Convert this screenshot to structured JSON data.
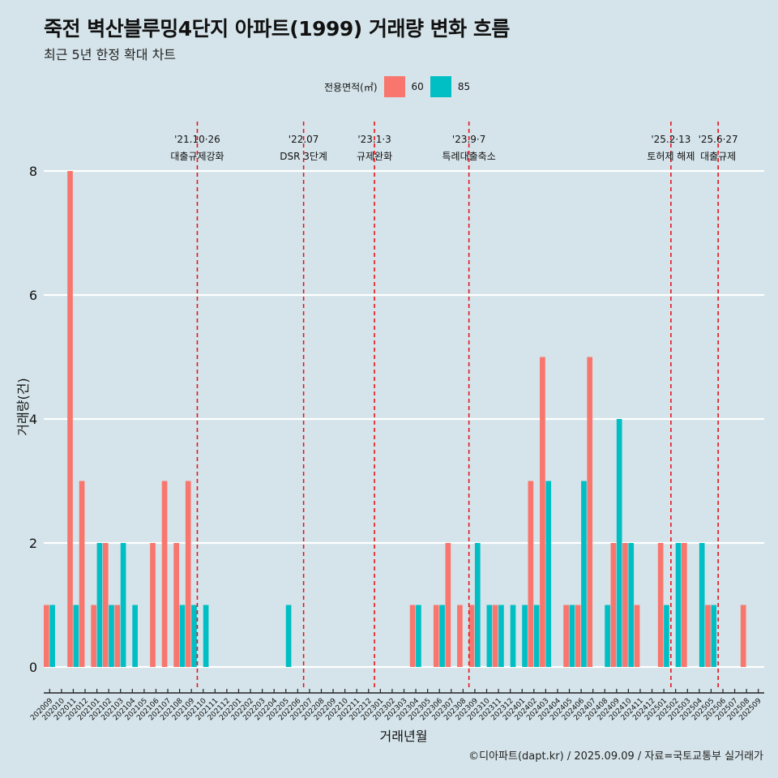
{
  "title": "죽전 벽산블루밍4단지 아파트(1999) 거래량 변화 흐름",
  "subtitle": "최근 5년 한정 확대 차트",
  "caption": "©디아파트(dapt.kr) / 2025.09.09 / 자료=국토교통부 실거래가",
  "chart_data": {
    "type": "bar",
    "xlabel": "거래년월",
    "ylabel": "거래량(건)",
    "ylim": [
      0,
      8
    ],
    "y_ticks": [
      "0",
      "2",
      "4",
      "6",
      "8"
    ],
    "grid": true,
    "legend": {
      "title": "전용면적(㎡)",
      "position": "top",
      "entries": [
        {
          "name": "60",
          "color": "#f8766d"
        },
        {
          "name": "85",
          "color": "#00bfc4"
        }
      ]
    },
    "categories": [
      "202009",
      "202010",
      "202011",
      "202012",
      "202101",
      "202102",
      "202103",
      "202104",
      "202105",
      "202106",
      "202107",
      "202108",
      "202109",
      "202110",
      "202111",
      "202112",
      "202201",
      "202202",
      "202203",
      "202204",
      "202205",
      "202206",
      "202207",
      "202208",
      "202209",
      "202210",
      "202211",
      "202212",
      "202301",
      "202302",
      "202303",
      "202304",
      "202305",
      "202306",
      "202307",
      "202308",
      "202309",
      "202310",
      "202311",
      "202312",
      "202401",
      "202402",
      "202403",
      "202404",
      "202405",
      "202406",
      "202407",
      "202408",
      "202409",
      "202410",
      "202411",
      "202412",
      "202501",
      "202502",
      "202503",
      "202504",
      "202505",
      "202506",
      "202507",
      "202508",
      "202509"
    ],
    "series": [
      {
        "name": "60",
        "color": "#f8766d",
        "values": [
          1,
          0,
          8,
          3,
          1,
          2,
          1,
          0,
          0,
          2,
          3,
          2,
          3,
          0,
          0,
          0,
          0,
          0,
          0,
          0,
          0,
          0,
          0,
          0,
          0,
          0,
          0,
          0,
          0,
          0,
          0,
          1,
          0,
          1,
          2,
          1,
          1,
          0,
          1,
          0,
          0,
          3,
          5,
          0,
          1,
          1,
          5,
          0,
          2,
          2,
          1,
          0,
          2,
          0,
          2,
          0,
          1,
          0,
          0,
          1,
          0
        ]
      },
      {
        "name": "85",
        "color": "#00bfc4",
        "values": [
          1,
          0,
          1,
          0,
          2,
          1,
          2,
          1,
          0,
          0,
          0,
          1,
          1,
          1,
          0,
          0,
          0,
          0,
          0,
          0,
          1,
          0,
          0,
          0,
          0,
          0,
          0,
          0,
          0,
          0,
          0,
          1,
          0,
          1,
          0,
          0,
          2,
          1,
          1,
          1,
          1,
          1,
          3,
          0,
          1,
          3,
          0,
          1,
          4,
          2,
          0,
          0,
          1,
          2,
          0,
          2,
          1,
          0,
          0,
          0,
          0
        ]
      }
    ],
    "annotations": [
      {
        "date": "'21.10·26",
        "label": "대출규제강화",
        "x": 13.0
      },
      {
        "date": "'22.07",
        "label": "DSR 3단계",
        "x": 22.0
      },
      {
        "date": "'23.1·3",
        "label": "규제완화",
        "x": 28.0
      },
      {
        "date": "'23.9·7",
        "label": "특례대출축소",
        "x": 36.0
      },
      {
        "date": "'25.2·13",
        "label": "토허제 해제",
        "x": 53.1
      },
      {
        "date": "'25.6·27",
        "label": "대출규제",
        "x": 57.1
      }
    ]
  }
}
